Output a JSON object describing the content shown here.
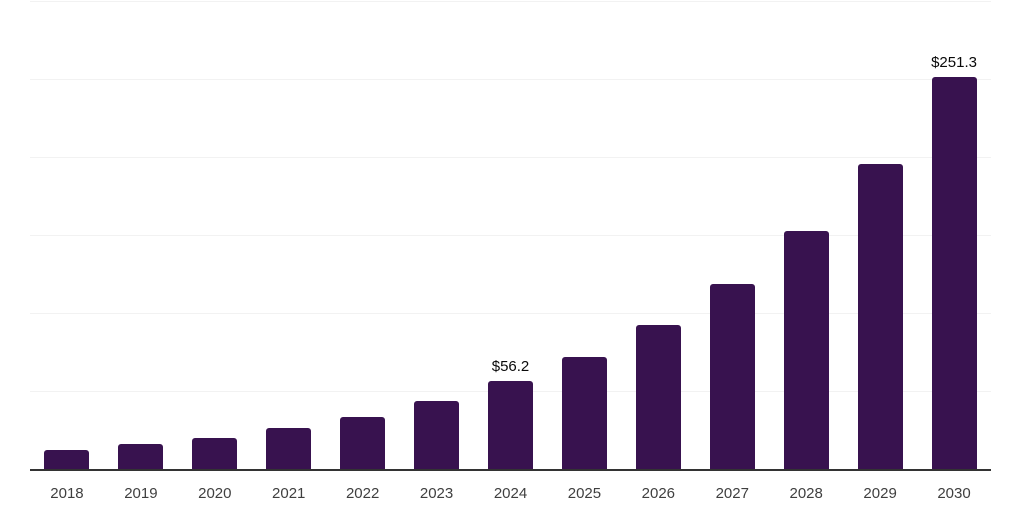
{
  "chart_data": {
    "type": "bar",
    "categories": [
      "2018",
      "2019",
      "2020",
      "2021",
      "2022",
      "2023",
      "2024",
      "2025",
      "2026",
      "2027",
      "2028",
      "2029",
      "2030"
    ],
    "values": [
      12.2,
      15.9,
      19.8,
      26.2,
      33.5,
      43.3,
      56.2,
      72.1,
      92.6,
      118.9,
      152.6,
      195.8,
      251.3
    ],
    "data_labels": [
      "",
      "",
      "",
      "",
      "",
      "",
      "$56.2",
      "",
      "",
      "",
      "",
      "",
      "$251.3"
    ],
    "ylim": [
      0,
      300
    ],
    "gridline_step": 50,
    "grid": "horizontal",
    "legend_position": "none",
    "bar_color": "#38124f",
    "axis_line_color": "#333333",
    "gridline_color": "#f2f2f2",
    "data_label_color": "#0a0a0a",
    "tick_label_color": "#3f3f3f"
  }
}
